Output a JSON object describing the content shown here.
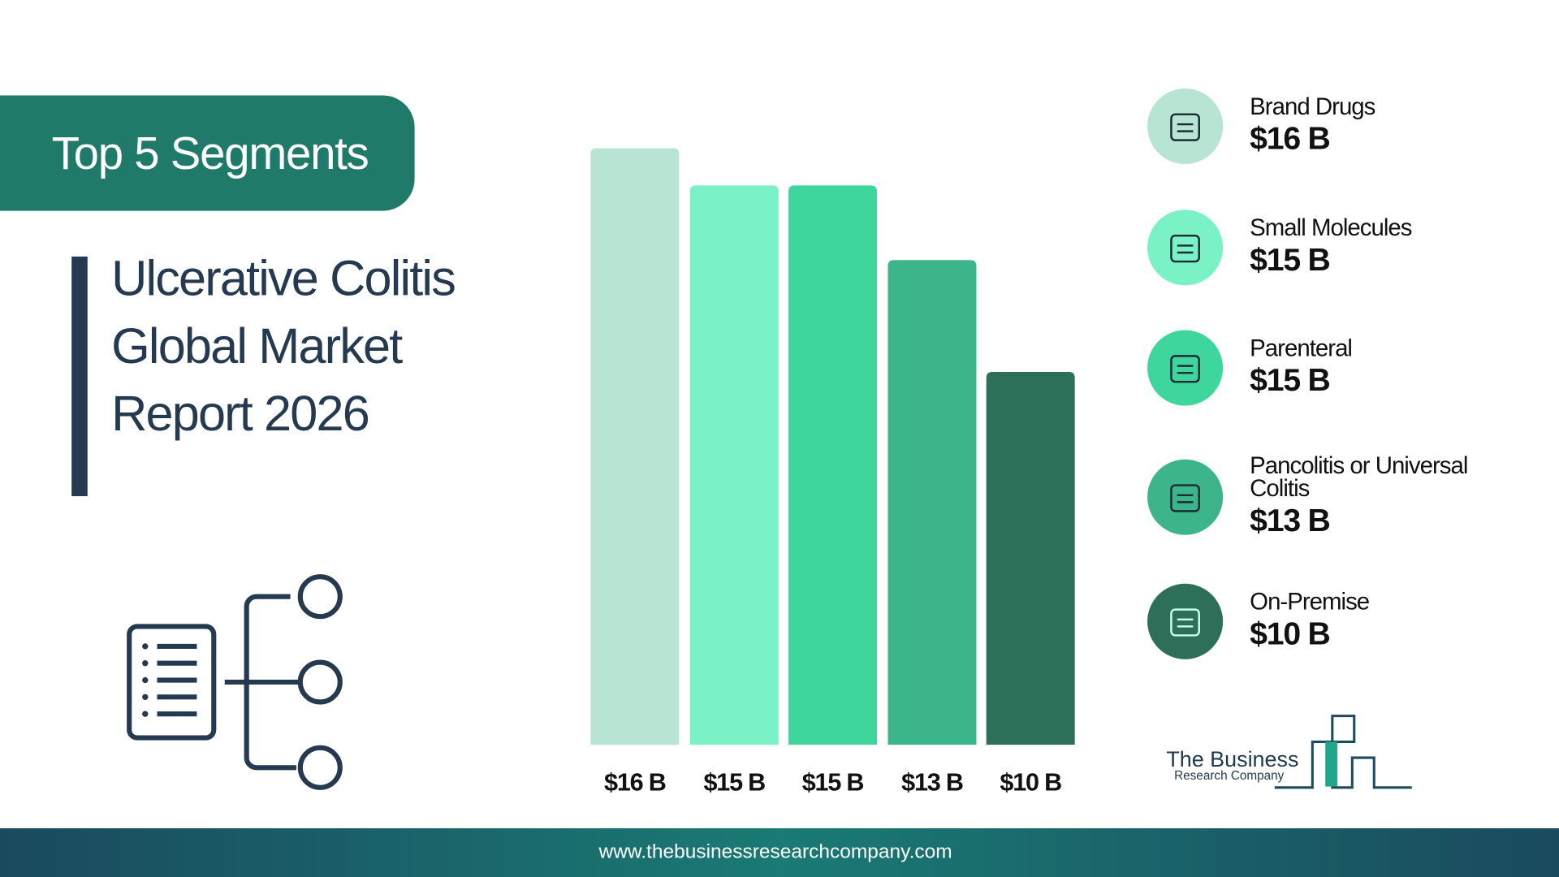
{
  "badge": "Top 5 Segments",
  "title_lines": [
    "Ulcerative Colitis",
    "Global Market",
    "Report 2026"
  ],
  "chart_data": {
    "type": "bar",
    "categories": [
      "Brand Drugs",
      "Small Molecules",
      "Parenteral",
      "Pancolitis or Universal Colitis",
      "On-Premise"
    ],
    "values": [
      16,
      15,
      15,
      13,
      10
    ],
    "value_labels": [
      "$16 B",
      "$15 B",
      "$15 B",
      "$13 B",
      "$10 B"
    ],
    "colors": [
      "#b8e4d4",
      "#7af2c6",
      "#3fd69e",
      "#3db58a",
      "#2e6f59"
    ]
  },
  "logo": {
    "line1": "The Business",
    "line2": "Research Company"
  },
  "footer": "www.thebusinessresearchcompany.com"
}
